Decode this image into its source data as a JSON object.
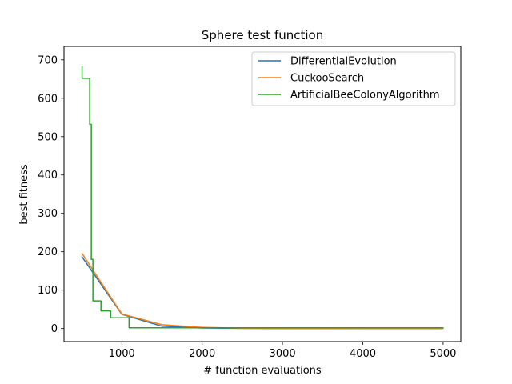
{
  "chart_data": {
    "type": "line",
    "title": "Sphere test function",
    "xlabel": "# function evaluations",
    "ylabel": "best fitness",
    "xlim": [
      280,
      5220
    ],
    "ylim": [
      -34,
      735
    ],
    "xticks": [
      1000,
      2000,
      3000,
      4000,
      5000
    ],
    "yticks": [
      0,
      100,
      200,
      300,
      400,
      500,
      600,
      700
    ],
    "grid": false,
    "legend_position": "top-right",
    "series": [
      {
        "name": "DifferentialEvolution",
        "color": "#1f77b4",
        "step": false,
        "x": [
          500,
          1000,
          1500,
          2000,
          2500,
          3000,
          3500,
          4000,
          4500,
          5000
        ],
        "y": [
          188,
          37,
          6,
          1.5,
          0.5,
          0.2,
          0.1,
          0.05,
          0.02,
          0.01
        ]
      },
      {
        "name": "CuckooSearch",
        "color": "#ff7f0e",
        "step": false,
        "x": [
          500,
          1000,
          1500,
          2000,
          2500,
          3000,
          3500,
          4000,
          4500,
          5000
        ],
        "y": [
          197,
          38,
          10,
          3,
          1,
          0.5,
          0.3,
          0.2,
          0.1,
          0.05
        ]
      },
      {
        "name": "ArtificialBeeColonyAlgorithm",
        "color": "#2ca02c",
        "step": true,
        "x": [
          500,
          505,
          600,
          620,
          640,
          660,
          740,
          860,
          1090,
          5000
        ],
        "y": [
          682,
          652,
          532,
          180,
          72,
          72,
          46,
          28,
          2,
          0
        ]
      }
    ]
  }
}
